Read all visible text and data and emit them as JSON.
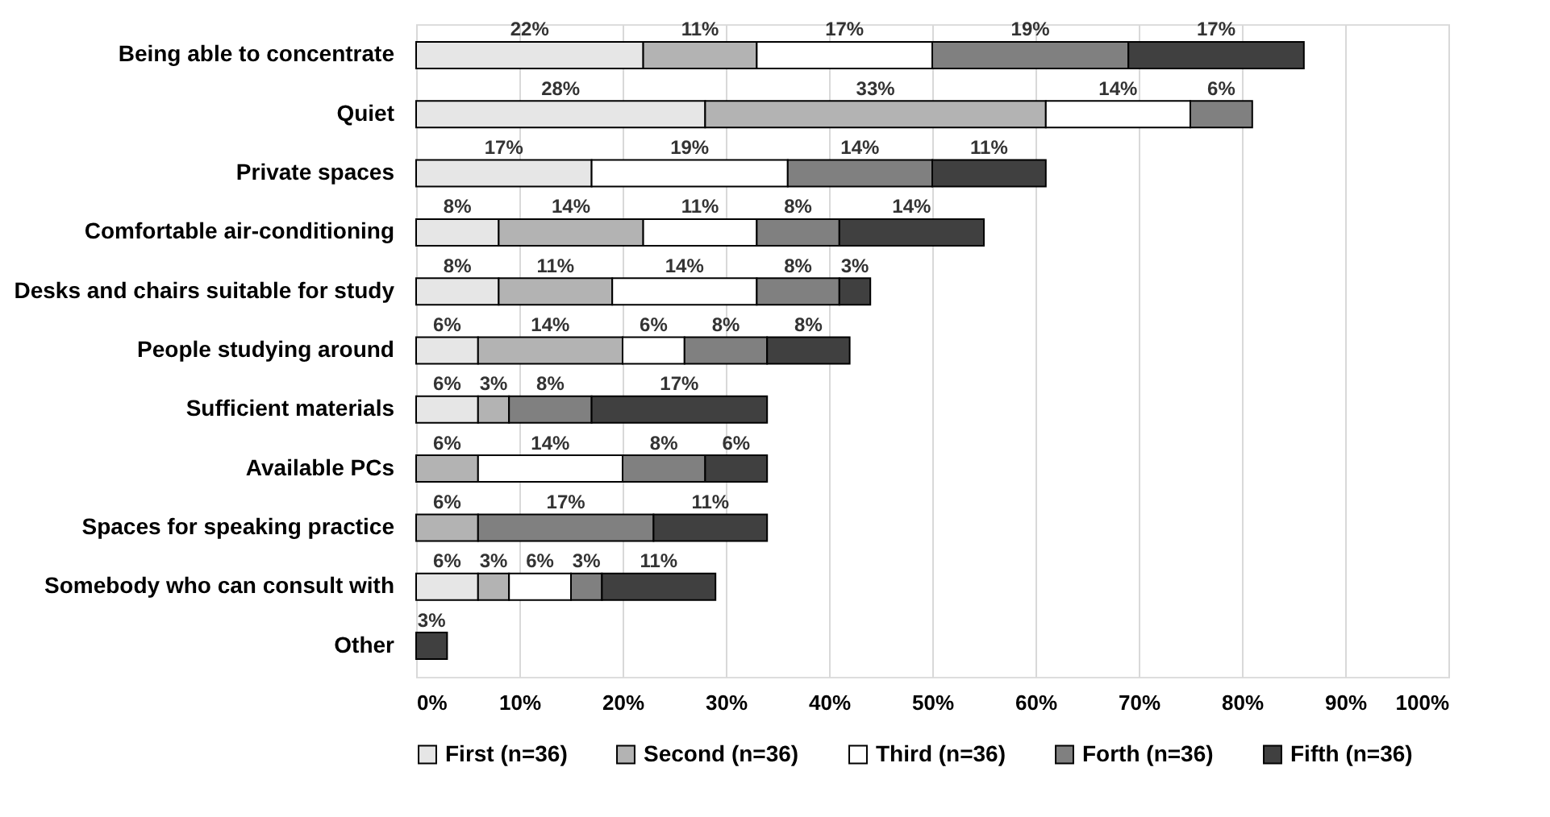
{
  "chart_data": {
    "type": "bar",
    "orientation": "horizontal",
    "stacked": true,
    "categories": [
      "Being able to concentrate",
      "Quiet",
      "Private spaces",
      "Comfortable air-conditioning",
      "Desks and chairs suitable for study",
      "People studying around",
      "Sufficient materials ",
      "Available PCs",
      "Spaces for speaking practice",
      "Somebody who can consult with",
      "Other"
    ],
    "series": [
      {
        "name": "First (n=36)",
        "color": "#e6e6e6",
        "values": [
          22,
          28,
          17,
          8,
          8,
          6,
          6,
          null,
          null,
          6,
          null
        ],
        "value_labels": [
          "22%",
          "28%",
          "17%",
          "8%",
          "8%",
          "6%",
          "6%",
          null,
          null,
          "6%",
          null
        ]
      },
      {
        "name": "Second (n=36)",
        "color": "#b3b3b3",
        "values": [
          11,
          33,
          null,
          14,
          11,
          14,
          3,
          6,
          6,
          3,
          null
        ],
        "value_labels": [
          "11%",
          "33%",
          null,
          "14%",
          "11%",
          "14%",
          "3%",
          "6%",
          "6%",
          "3%",
          null
        ]
      },
      {
        "name": "Third (n=36)",
        "color": "#ffffff",
        "values": [
          17,
          14,
          19,
          11,
          14,
          6,
          null,
          14,
          null,
          6,
          null
        ],
        "value_labels": [
          "17%",
          "14%",
          "19%",
          "11%",
          "14%",
          "6%",
          null,
          "14%",
          null,
          "6%",
          null
        ]
      },
      {
        "name": "Forth (n=36)",
        "color": "#808080",
        "values": [
          19,
          6,
          14,
          8,
          8,
          8,
          8,
          8,
          17,
          3,
          null
        ],
        "value_labels": [
          "19%",
          "6%",
          "14%",
          "8%",
          "8%",
          "8%",
          "8%",
          "8%",
          "17%",
          "3%",
          null
        ]
      },
      {
        "name": "Fifth (n=36)",
        "color": "#404040",
        "values": [
          17,
          null,
          11,
          14,
          3,
          8,
          17,
          6,
          11,
          11,
          3
        ],
        "value_labels": [
          "17%",
          null,
          "11%",
          "14%",
          "3%",
          "8%",
          "17%",
          "6%",
          "11%",
          "11%",
          "3%"
        ]
      }
    ],
    "xlim": [
      0,
      100
    ],
    "xticks": [
      {
        "value": 0,
        "label": "0%"
      },
      {
        "value": 10,
        "label": "10%"
      },
      {
        "value": 20,
        "label": "20%"
      },
      {
        "value": 30,
        "label": "30%"
      },
      {
        "value": 40,
        "label": "40%"
      },
      {
        "value": 50,
        "label": "50%"
      },
      {
        "value": 60,
        "label": "60%"
      },
      {
        "value": 70,
        "label": "70%"
      },
      {
        "value": 80,
        "label": "80%"
      },
      {
        "value": 90,
        "label": "90%"
      },
      {
        "value": 100,
        "label": "100%"
      }
    ],
    "grid": "x",
    "legend": "bottom"
  }
}
